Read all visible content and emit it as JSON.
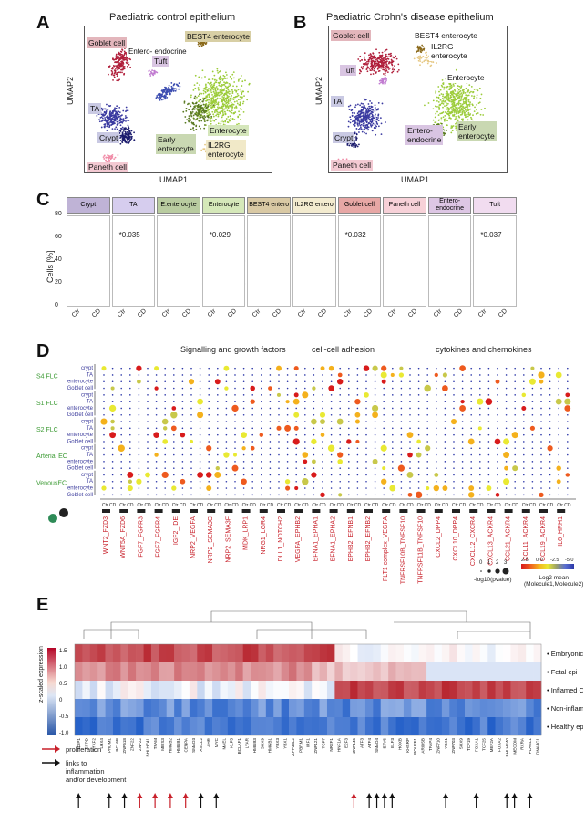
{
  "panelA": {
    "letter": "A",
    "title": "Paediatric control epithelium",
    "xlabel": "UMAP1",
    "ylabel": "UMAP2",
    "labels": [
      "Goblet cell",
      "Entero-\nendocrine",
      "Tuft",
      "BEST4 enterocyte",
      "TA",
      "Crypt",
      "Early\nenterocyte",
      "Enterocyte",
      "IL2RG\nenterocyte",
      "Paneth cell"
    ]
  },
  "panelB": {
    "letter": "B",
    "title": "Paediatric Crohn's disease epithelium",
    "xlabel": "UMAP1",
    "ylabel": "UMAP2",
    "labels": [
      "Goblet cell",
      "BEST4 enterocyte",
      "IL2RG\nenterocyte",
      "Tuft",
      "TA",
      "Enterocyte",
      "Crypt",
      "Entero-\nendocrine",
      "Early\nenterocyte",
      "Paneth cell"
    ]
  },
  "panelC": {
    "letter": "C",
    "ylabel": "Cells [%]",
    "yticks": [
      "80",
      "60",
      "40",
      "20",
      "0"
    ],
    "xticks": [
      "Ctr",
      "CD"
    ]
  },
  "panelD": {
    "letter": "D",
    "groups": [
      "Signalling and growth factors",
      "cell-cell adhesion",
      "cytokines and chemokines"
    ],
    "row_groups": [
      "S4 FLC",
      "S1 FLC",
      "S2 FLC",
      "Arterial EC",
      "VenousEC"
    ],
    "row_cells": [
      "crypt",
      "TA",
      "enterocyte",
      "Goblet cell"
    ],
    "col_tick": "Ctr CD",
    "pairs": [
      "WNT2_FZD3",
      "WNT5A_FZD6",
      "FGF7_FGFR3",
      "FGF7_FGFR4",
      "IGF2_IDE",
      "NRP2_VEGFA",
      "NRP2_SEMA3C",
      "NRP2_SEMA3F",
      "MDK_LRP1",
      "NRG1_LGR4",
      "DLL1_NOTCH2",
      "VEGFA_EPHB2",
      "EFNA1_EPHA1",
      "EFNA1_EPHA2",
      "EPHB2_EFNB1",
      "EPHB2_EFNB2",
      "FLT1 complex_VEGFA",
      "TNFRSF10B_TNFSF10",
      "TNFRSF11B_TNFSF10",
      "CXCL2_DPP4",
      "CXCL10_DPP4",
      "CXCL12_CXCR4",
      "CXCL13_ACKR4",
      "CCL21_ACKR4",
      "CCL11_ACKR4",
      "CCL19_ACKR4",
      "IL6_HRH1"
    ],
    "legend_size_ticks": [
      "0",
      "1",
      "2",
      "3"
    ],
    "legend_size_title": "-log10(pvalue)",
    "legend_color_ticks": [
      "2.5",
      "0.0",
      "-2.5",
      "-5.0"
    ],
    "legend_color_title": "Log2 mean\n(Molecule1,Molecule2)"
  },
  "panelE": {
    "letter": "E",
    "colorbar_title": "z-scaled expression",
    "colorbar_ticks": [
      "1.5",
      "1.0",
      "0.5",
      "0",
      "-0.5",
      "-1.0"
    ],
    "rows": [
      "Embryonic epi",
      "Fetal epi",
      "Inflamed CD epi",
      "Non-inflamed CD epi",
      "Healthy epi"
    ],
    "genes": [
      "TCIP1",
      "SFPD",
      "HYKF2",
      "LHX4",
      "PRDM1",
      "BCL6B",
      "ZNF618",
      "ZNF22",
      "ZNF22",
      "BHLHE41",
      "TFAM",
      "MEIS3",
      "HMGB2",
      "HMGB1",
      "CENPA",
      "SMAD3",
      "ASCL2",
      "AHR",
      "MYC",
      "MAEL",
      "KLF5",
      "BCLAF1",
      "LYAR",
      "HMGB3",
      "SOX9",
      "HMGB1",
      "YBX3",
      "YBX1",
      "ZFP36L2",
      "PBRM1",
      "IRF1",
      "ZNF121",
      "TCF7",
      "NR2F1",
      "HNF1A",
      "E2F3",
      "ZNF146",
      "ATF3",
      "ATF4",
      "SMAD4",
      "ETV6",
      "ELF3",
      "HOXB",
      "KHSRP",
      "POU2F1",
      "ARID5B",
      "TFAP4",
      "ZNF710",
      "YBX1",
      "ZNF703",
      "SOX9",
      "TCF19",
      "FOXA1",
      "TCF25",
      "MEF2A",
      "FOXA2",
      "BHLHE40",
      "MECOM",
      "RXRA",
      "PLAGL1",
      "DNAJC1"
    ],
    "legend_proliferation": "proliferation",
    "legend_links": "links to\ninflammation\nand/or development"
  }
}
